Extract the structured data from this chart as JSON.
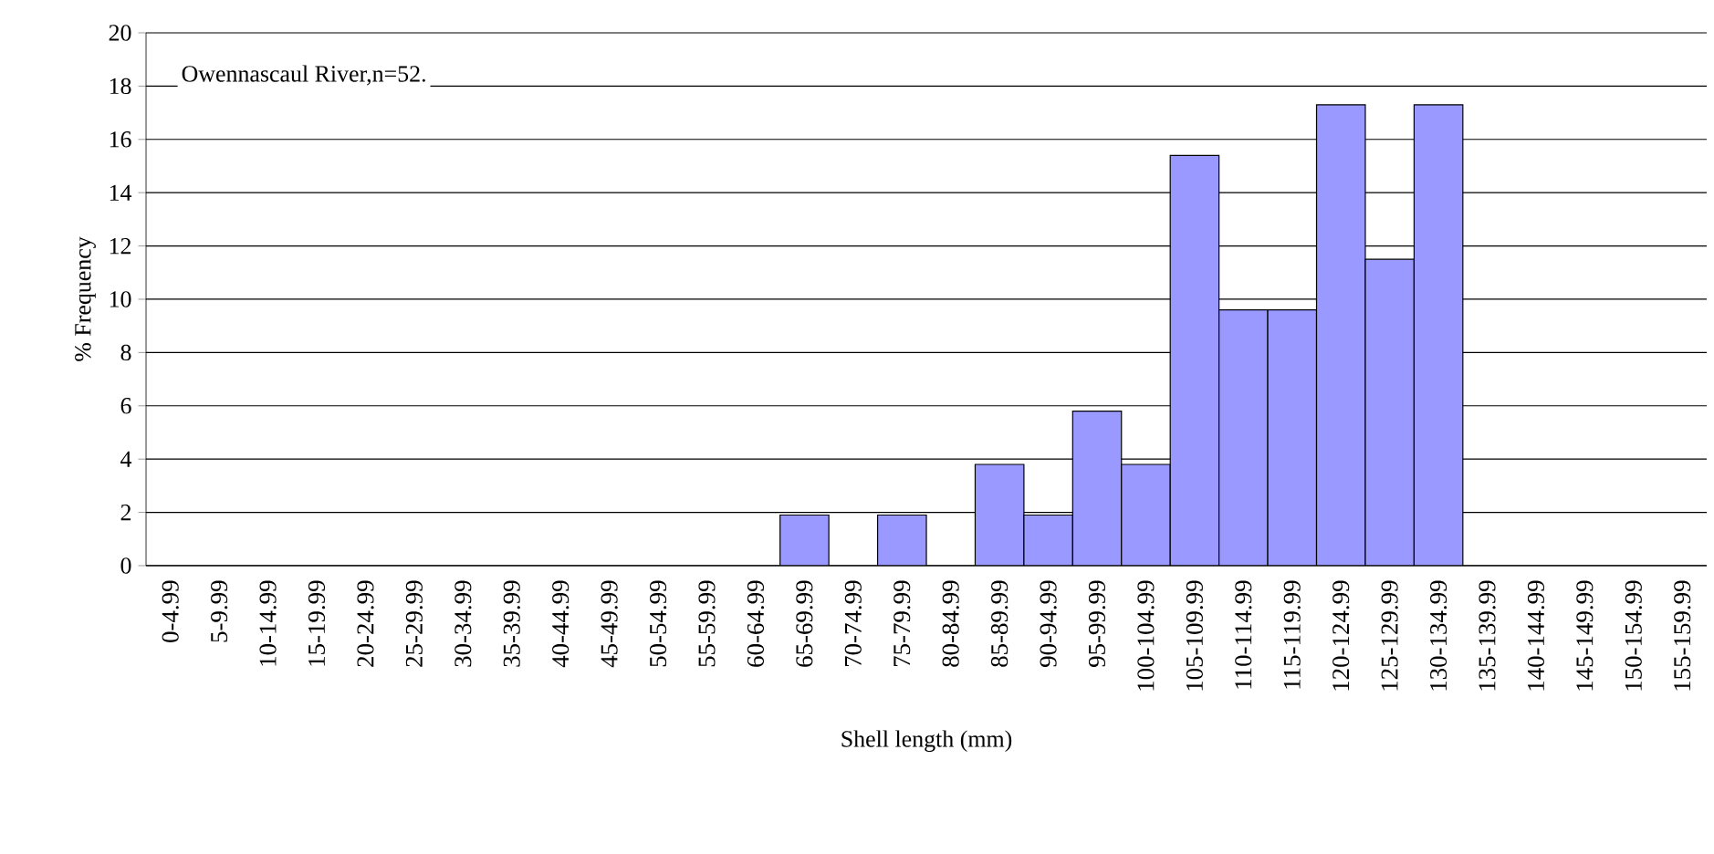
{
  "chart_data": {
    "type": "bar",
    "title": "Owennascaul River,n=52.",
    "xlabel": "Shell length (mm)",
    "ylabel": "% Frequency",
    "categories": [
      "0-4.99",
      "5-9.99",
      "10-14.99",
      "15-19.99",
      "20-24.99",
      "25-29.99",
      "30-34.99",
      "35-39.99",
      "40-44.99",
      "45-49.99",
      "50-54.99",
      "55-59.99",
      "60-64.99",
      "65-69.99",
      "70-74.99",
      "75-79.99",
      "80-84.99",
      "85-89.99",
      "90-94.99",
      "95-99.99",
      "100-104.99",
      "105-109.99",
      "110-114.99",
      "115-119.99",
      "120-124.99",
      "125-129.99",
      "130-134.99",
      "135-139.99",
      "140-144.99",
      "145-149.99",
      "150-154.99",
      "155-159.99"
    ],
    "values": [
      0,
      0,
      0,
      0,
      0,
      0,
      0,
      0,
      0,
      0,
      0,
      0,
      0,
      1.9,
      0,
      1.9,
      0,
      3.8,
      1.9,
      5.8,
      3.8,
      15.4,
      9.6,
      9.6,
      17.3,
      11.5,
      17.3,
      0,
      0,
      0,
      0,
      0
    ],
    "color": "#9999ff",
    "ylim": [
      0,
      20
    ],
    "yticks": [
      0,
      2,
      4,
      6,
      8,
      10,
      12,
      14,
      16,
      18,
      20
    ],
    "grid": "y"
  }
}
